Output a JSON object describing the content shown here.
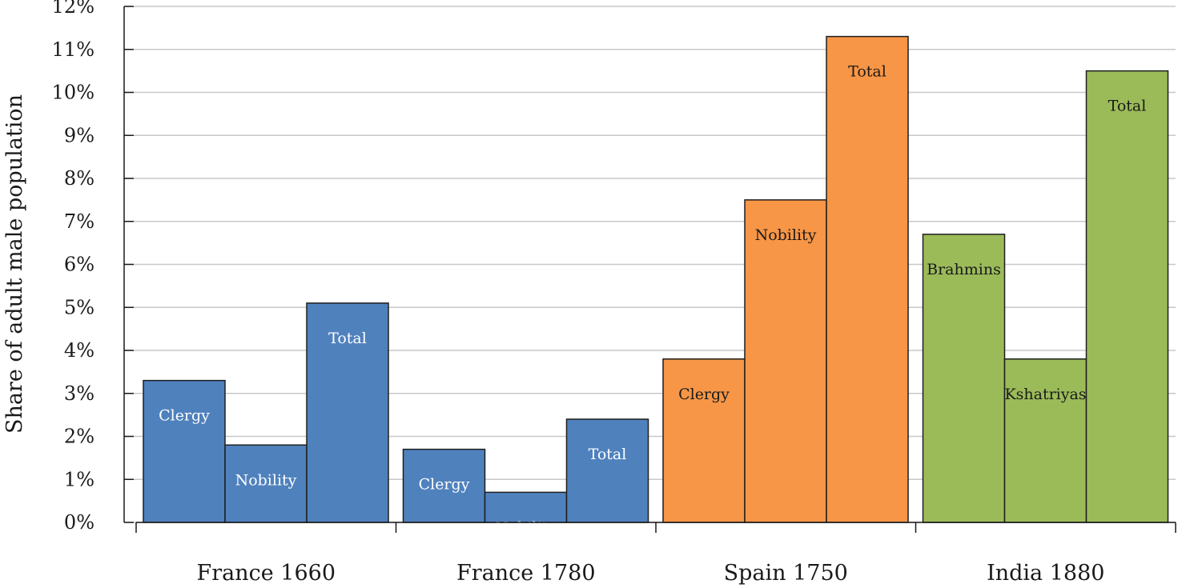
{
  "chart_data": {
    "type": "bar",
    "ylabel": "Share of adult male population",
    "ylim": [
      0,
      12
    ],
    "yticks": [
      0,
      1,
      2,
      3,
      4,
      5,
      6,
      7,
      8,
      9,
      10,
      11,
      12
    ],
    "tick_suffix": "%",
    "grid": true,
    "groups": [
      {
        "name": "France 1660",
        "color": "#4f81bd",
        "label_color": "#ffffff",
        "bars": [
          {
            "label": "Clergy",
            "value": 3.3
          },
          {
            "label": "Nobility",
            "value": 1.8
          },
          {
            "label": "Total",
            "value": 5.1
          }
        ]
      },
      {
        "name": "France 1780",
        "color": "#4f81bd",
        "label_color": "#ffffff",
        "bars": [
          {
            "label": "Clergy",
            "value": 1.7
          },
          {
            "label": "Nobility",
            "value": 0.7
          },
          {
            "label": "Total",
            "value": 2.4
          }
        ]
      },
      {
        "name": "Spain 1750",
        "color": "#f79646",
        "label_color": "#1a1a1a",
        "bars": [
          {
            "label": "Clergy",
            "value": 3.8
          },
          {
            "label": "Nobility",
            "value": 7.5
          },
          {
            "label": "Total",
            "value": 11.3
          }
        ]
      },
      {
        "name": "India 1880",
        "color": "#9bbb59",
        "label_color": "#1a1a1a",
        "bars": [
          {
            "label": "Brahmins",
            "value": 6.7
          },
          {
            "label": "Kshatriyas",
            "value": 3.8
          },
          {
            "label": "Total",
            "value": 10.5
          }
        ]
      }
    ]
  }
}
